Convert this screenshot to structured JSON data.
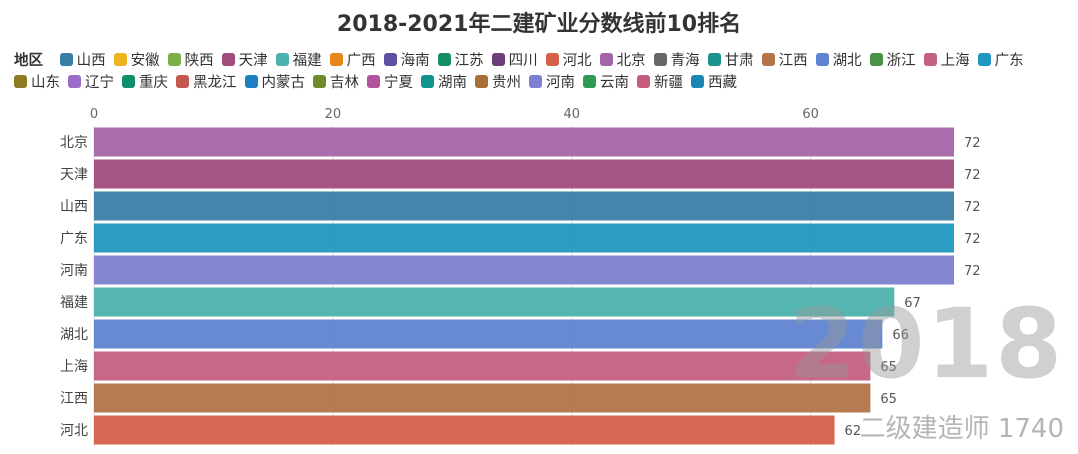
{
  "title": "2018-2021年二建矿业分数线前10排名",
  "legend_title": "地区",
  "legend": [
    {
      "name": "山西",
      "color": "#3a7ea8"
    },
    {
      "name": "安徽",
      "color": "#eeb31e"
    },
    {
      "name": "陕西",
      "color": "#7db04a"
    },
    {
      "name": "天津",
      "color": "#a04c7c"
    },
    {
      "name": "福建",
      "color": "#4cb2ad"
    },
    {
      "name": "广西",
      "color": "#e7861d"
    },
    {
      "name": "海南",
      "color": "#5e4fa0"
    },
    {
      "name": "江苏",
      "color": "#178f66"
    },
    {
      "name": "四川",
      "color": "#6d3f78"
    },
    {
      "name": "河北",
      "color": "#d5604a"
    },
    {
      "name": "北京",
      "color": "#a464a8"
    },
    {
      "name": "青海",
      "color": "#676767"
    },
    {
      "name": "甘肃",
      "color": "#1a938e"
    },
    {
      "name": "江西",
      "color": "#b37449"
    },
    {
      "name": "湖北",
      "color": "#5f84d1"
    },
    {
      "name": "浙江",
      "color": "#4b9148"
    },
    {
      "name": "上海",
      "color": "#c46180"
    },
    {
      "name": "广东",
      "color": "#2097c0"
    },
    {
      "name": "山东",
      "color": "#8f7a22"
    },
    {
      "name": "辽宁",
      "color": "#9a6ec8"
    },
    {
      "name": "重庆",
      "color": "#118f6c"
    },
    {
      "name": "黑龙江",
      "color": "#c6574f"
    },
    {
      "name": "内蒙古",
      "color": "#1c7fc4"
    },
    {
      "name": "吉林",
      "color": "#6f8c2c"
    },
    {
      "name": "宁夏",
      "color": "#b1549b"
    },
    {
      "name": "湖南",
      "color": "#12928f"
    },
    {
      "name": "贵州",
      "color": "#a87038"
    },
    {
      "name": "河南",
      "color": "#7d7fd0"
    },
    {
      "name": "云南",
      "color": "#2e9a52"
    },
    {
      "name": "新疆",
      "color": "#c65b7b"
    },
    {
      "name": "西藏",
      "color": "#1a86b7"
    }
  ],
  "watermark": {
    "year": "2018",
    "text": "二级建造师 1740"
  },
  "chart_data": {
    "type": "bar",
    "orientation": "horizontal",
    "title": "2018-2021年二建矿业分数线前10排名",
    "xlim": [
      0,
      72
    ],
    "xticks": [
      0,
      20,
      40,
      60
    ],
    "grid": true,
    "categories": [
      "北京",
      "天津",
      "山西",
      "广东",
      "河南",
      "福建",
      "湖北",
      "上海",
      "江西",
      "河北"
    ],
    "values": [
      72,
      72,
      72,
      72,
      72,
      67,
      66,
      65,
      65,
      62
    ],
    "colors": [
      "#a464a8",
      "#a04c7c",
      "#3a7ea8",
      "#2097c0",
      "#7d7fd0",
      "#4cb2ad",
      "#5f84d1",
      "#c46180",
      "#b37449",
      "#d5604a"
    ]
  }
}
